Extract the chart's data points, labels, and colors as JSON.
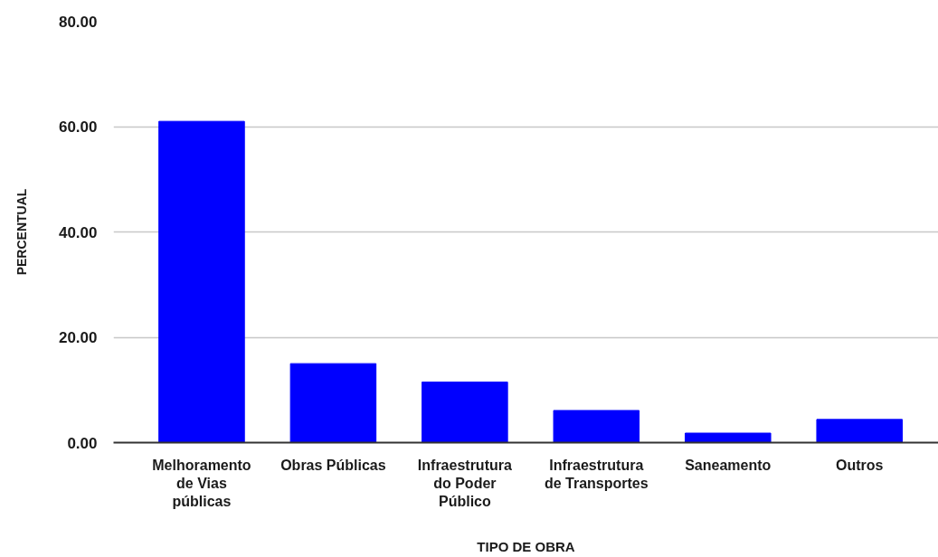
{
  "chart_data": {
    "type": "bar",
    "xlabel": "TIPO DE OBRA",
    "ylabel": "PERCENTUAL",
    "categories": [
      "Melhoramento de Vias públicas",
      "Obras Públicas",
      "Infraestrutura do Poder Público",
      "Infraestrutura de Transportes",
      "Saneamento",
      "Outros"
    ],
    "values": [
      61,
      15,
      11.5,
      6.1,
      1.8,
      4.4
    ],
    "color": "#0000ff",
    "ylim": [
      0,
      80
    ],
    "yticks": [
      {
        "value": 0,
        "label": "0.00"
      },
      {
        "value": 20,
        "label": "20.00"
      },
      {
        "value": 40,
        "label": "40.00"
      },
      {
        "value": 60,
        "label": "60.00"
      },
      {
        "value": 80,
        "label": "80.00"
      }
    ],
    "grid": "y"
  }
}
